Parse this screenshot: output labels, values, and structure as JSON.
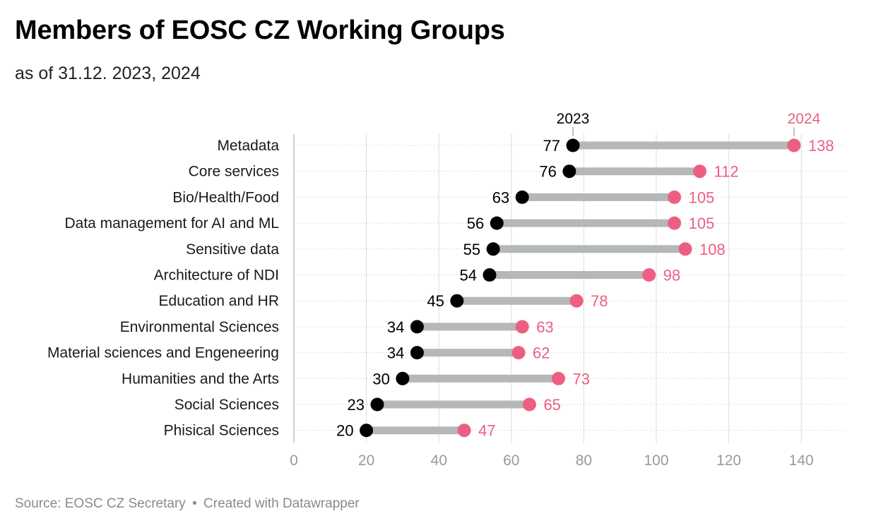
{
  "header": {
    "title": "Members of EOSC CZ Working Groups",
    "subtitle": "as of 31.12. 2023, 2024"
  },
  "footer": {
    "source": "Source: EOSC CZ Secretary",
    "separator": "•",
    "credit": "Created with Datawrapper"
  },
  "colors": {
    "series_2023": "#000000",
    "series_2024": "#ec5f82",
    "connector": "#b4b8b7",
    "grid": "#dcdcdc",
    "axis_text": "#9a9a9a"
  },
  "chart_data": {
    "type": "dumbbell",
    "title": "Members of EOSC CZ Working Groups",
    "subtitle": "as of 31.12. 2023, 2024",
    "xlabel": "",
    "ylabel": "",
    "xlim": [
      0,
      150
    ],
    "xticks": [
      0,
      20,
      40,
      60,
      80,
      100,
      120,
      140
    ],
    "grid": true,
    "categories": [
      "Metadata",
      "Core services",
      "Bio/Health/Food",
      "Data management for AI and ML",
      "Sensitive data",
      "Architecture of NDI",
      "Education and HR",
      "Environmental Sciences",
      "Material sciences and Engeneering",
      "Humanities and the Arts",
      "Social Sciences",
      "Phisical Sciences"
    ],
    "series": [
      {
        "name": "2023",
        "values": [
          77,
          76,
          63,
          56,
          55,
          54,
          45,
          34,
          34,
          30,
          23,
          20
        ]
      },
      {
        "name": "2024",
        "values": [
          138,
          112,
          105,
          105,
          108,
          98,
          78,
          63,
          62,
          73,
          65,
          47
        ]
      }
    ]
  }
}
